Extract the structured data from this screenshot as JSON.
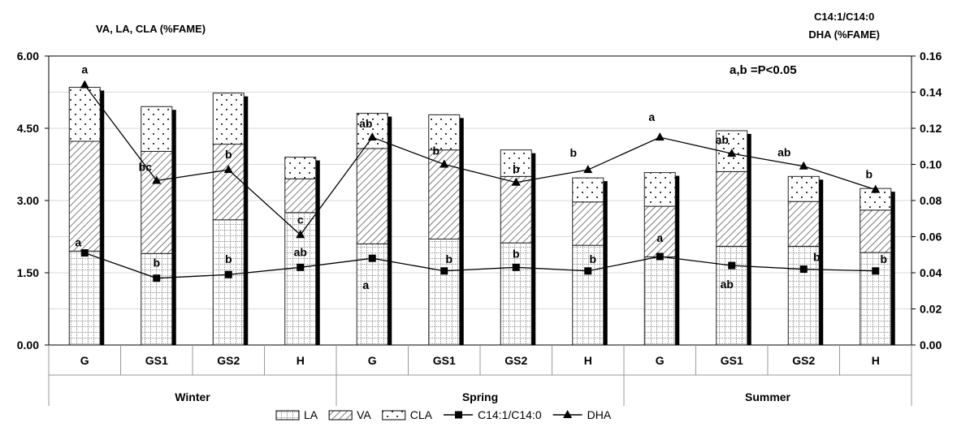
{
  "chart_data": {
    "type": "bar",
    "stacked": true,
    "left_axis_label": "VA, LA, CLA (%FAME)",
    "right_axis_label_lines": [
      "C14:1/C14:0",
      "DHA (%FAME)"
    ],
    "annotation": "a,b =P<0.05",
    "left_ylim": [
      0,
      6
    ],
    "left_ticks": [
      "0.00",
      "1.50",
      "3.00",
      "4.50",
      "6.00"
    ],
    "right_ylim": [
      0,
      0.16
    ],
    "right_ticks": [
      "0.00",
      "0.02",
      "0.04",
      "0.06",
      "0.08",
      "0.10",
      "0.12",
      "0.14",
      "0.16"
    ],
    "categories": [
      "G",
      "GS1",
      "GS2",
      "H",
      "G",
      "GS1",
      "GS2",
      "H",
      "G",
      "GS1",
      "GS2",
      "H"
    ],
    "groups": [
      "Winter",
      "Spring",
      "Summer"
    ],
    "series": [
      {
        "name": "LA",
        "axis": "left",
        "values": [
          1.95,
          1.9,
          2.6,
          2.75,
          2.1,
          2.2,
          2.12,
          2.07,
          1.83,
          2.05,
          2.05,
          1.92
        ]
      },
      {
        "name": "VA",
        "axis": "left",
        "values": [
          2.28,
          2.12,
          1.57,
          0.7,
          1.98,
          1.85,
          1.38,
          0.9,
          1.05,
          1.55,
          0.93,
          0.88
        ]
      },
      {
        "name": "CLA",
        "axis": "left",
        "values": [
          1.12,
          0.93,
          1.06,
          0.45,
          0.73,
          0.73,
          0.55,
          0.5,
          0.7,
          0.85,
          0.52,
          0.45
        ]
      },
      {
        "name": "C14:1/C14:0",
        "axis": "right",
        "type": "line",
        "values": [
          0.051,
          0.037,
          0.039,
          0.043,
          0.048,
          0.041,
          0.043,
          0.041,
          0.049,
          0.044,
          0.042,
          0.041
        ]
      },
      {
        "name": "DHA",
        "axis": "right",
        "type": "line",
        "values": [
          0.144,
          0.091,
          0.097,
          0.061,
          0.115,
          0.1,
          0.09,
          0.097,
          0.115,
          0.106,
          0.099,
          0.086
        ]
      }
    ],
    "dha_labels": [
      "a",
      "bc",
      "b",
      "c",
      "ab",
      "b",
      "b",
      "b",
      "a",
      "ab",
      "ab",
      "b"
    ],
    "c14_labels": [
      "a",
      "b",
      "b",
      "ab",
      "a",
      "b",
      "b",
      "b",
      "a",
      "ab",
      "b",
      "b"
    ],
    "legend": [
      "LA",
      "VA",
      "CLA",
      "C14:1/C14:0",
      "DHA"
    ],
    "legend_position": "bottom",
    "colors": {
      "bar_fill": "#ffffff",
      "bar_stroke": "#000000",
      "shadow": "#000000",
      "line": "#000000",
      "grid": "#d9d9d9"
    }
  }
}
